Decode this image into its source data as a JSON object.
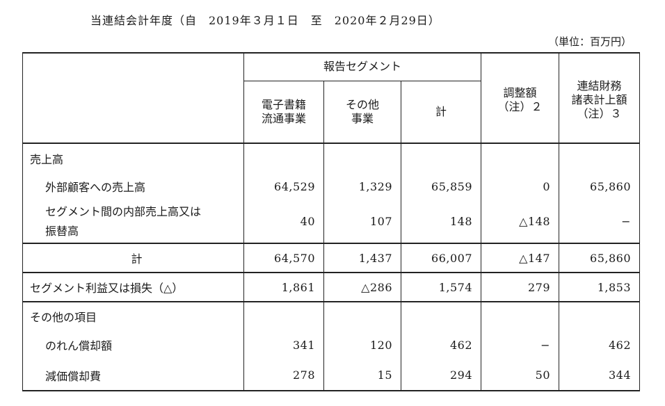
{
  "title": "当連結会計年度（自　2019年３月１日　至　2020年２月29日）",
  "unit": "（単位：百万円）",
  "header": {
    "segment_group": "報告セグメント",
    "col_ebook": "電子書籍\n流通事業",
    "col_other": "その他\n事業",
    "col_total": "計",
    "col_adjust": "調整額\n（注）２",
    "col_consolidated": "連結財務\n諸表計上額\n（注）３"
  },
  "sections": {
    "sales_heading": "売上高",
    "external_sales": {
      "label": "外部顧客への売上高",
      "values": [
        "64,529",
        "1,329",
        "65,859",
        "0",
        "65,860"
      ]
    },
    "internal_sales": {
      "label": "セグメント間の内部売上高又は\n振替高",
      "values": [
        "40",
        "107",
        "148",
        "△148",
        "−"
      ]
    },
    "subtotal": {
      "label": "計",
      "values": [
        "64,570",
        "1,437",
        "66,007",
        "△147",
        "65,860"
      ]
    },
    "segment_profit": {
      "label": "セグメント利益又は損失（△）",
      "values": [
        "1,861",
        "△286",
        "1,574",
        "279",
        "1,853"
      ]
    },
    "other_heading": "その他の項目",
    "goodwill": {
      "label": "のれん償却額",
      "values": [
        "341",
        "120",
        "462",
        "−",
        "462"
      ]
    },
    "depreciation": {
      "label": "減価償却費",
      "values": [
        "278",
        "15",
        "294",
        "50",
        "344"
      ]
    }
  }
}
